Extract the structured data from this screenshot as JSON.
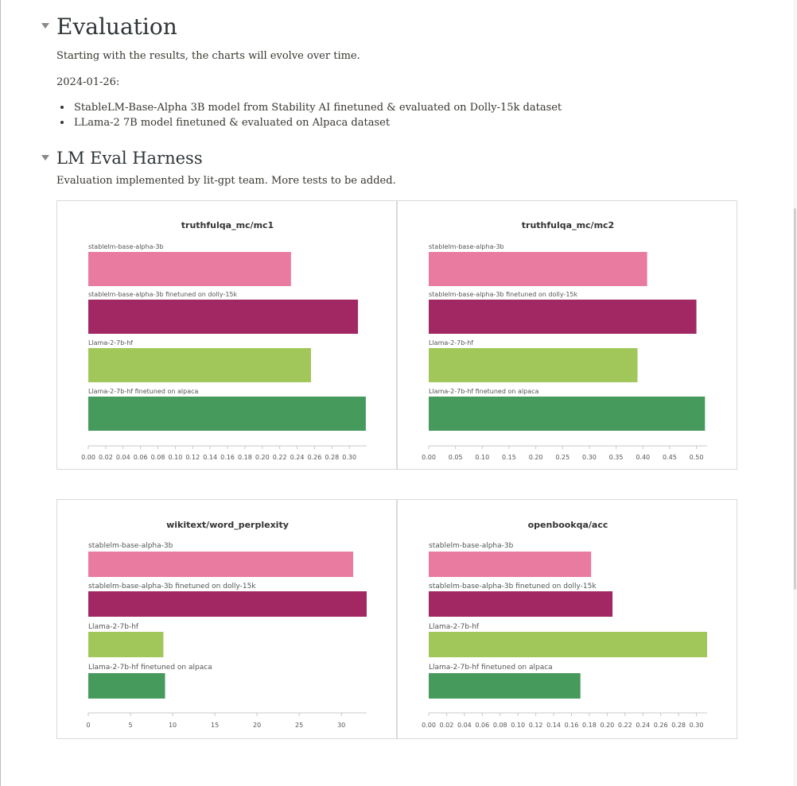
{
  "heading1": "Evaluation",
  "intro": "Starting with the results, the charts will evolve over time.",
  "date": "2024-01-26:",
  "bullets": [
    "StableLM-Base-Alpha 3B model from Stability AI finetuned & evaluated on Dolly-15k dataset",
    "LLama-2 7B model finetuned & evaluated on Alpaca dataset"
  ],
  "heading2": "LM Eval Harness",
  "subtitle": "Evaluation implemented by lit-gpt team. More tests to be added.",
  "colors": {
    "stablelm": "#e97ba0",
    "stablelm_ft": "#a12863",
    "llama": "#a1c75b",
    "llama_ft": "#469a5c"
  },
  "chart_data": [
    {
      "type": "bar",
      "orientation": "horizontal",
      "title": "truthfulqa_mc/mc1",
      "categories": [
        "stablelm-base-alpha-3b",
        "stablelm-base-alpha-3b finetuned on dolly-15k",
        "Llama-2-7b-hf",
        "Llama-2-7b-hf finetuned on alpaca"
      ],
      "values": [
        0.233,
        0.31,
        0.256,
        0.319
      ],
      "xlim": [
        0,
        0.32
      ],
      "ticks": [
        "0.00",
        "0.02",
        "0.04",
        "0.06",
        "0.08",
        "0.10",
        "0.12",
        "0.14",
        "0.16",
        "0.18",
        "0.20",
        "0.22",
        "0.24",
        "0.26",
        "0.28",
        "0.30"
      ]
    },
    {
      "type": "bar",
      "orientation": "horizontal",
      "title": "truthfulqa_mc/mc2",
      "categories": [
        "stablelm-base-alpha-3b",
        "stablelm-base-alpha-3b finetuned on dolly-15k",
        "Llama-2-7b-hf",
        "Llama-2-7b-hf finetuned on alpaca"
      ],
      "values": [
        0.408,
        0.5,
        0.39,
        0.516
      ],
      "xlim": [
        0,
        0.52
      ],
      "ticks": [
        "0.00",
        "0.05",
        "0.10",
        "0.15",
        "0.20",
        "0.25",
        "0.30",
        "0.35",
        "0.40",
        "0.45",
        "0.50"
      ]
    },
    {
      "type": "bar",
      "orientation": "horizontal",
      "title": "wikitext/word_perplexity",
      "categories": [
        "stablelm-base-alpha-3b",
        "stablelm-base-alpha-3b finetuned on dolly-15k",
        "Llama-2-7b-hf",
        "Llama-2-7b-hf finetuned on alpaca"
      ],
      "values": [
        31.4,
        33.0,
        8.9,
        9.1
      ],
      "xlim": [
        0,
        33
      ],
      "ticks": [
        "0",
        "5",
        "10",
        "15",
        "20",
        "25",
        "30"
      ]
    },
    {
      "type": "bar",
      "orientation": "horizontal",
      "title": "openbookqa/acc",
      "categories": [
        "stablelm-base-alpha-3b",
        "stablelm-base-alpha-3b finetuned on dolly-15k",
        "Llama-2-7b-hf",
        "Llama-2-7b-hf finetuned on alpaca"
      ],
      "values": [
        0.182,
        0.206,
        0.312,
        0.17
      ],
      "xlim": [
        0,
        0.312
      ],
      "ticks": [
        "0.00",
        "0.02",
        "0.04",
        "0.06",
        "0.08",
        "0.10",
        "0.12",
        "0.14",
        "0.16",
        "0.18",
        "0.20",
        "0.22",
        "0.24",
        "0.26",
        "0.28",
        "0.30"
      ]
    }
  ]
}
